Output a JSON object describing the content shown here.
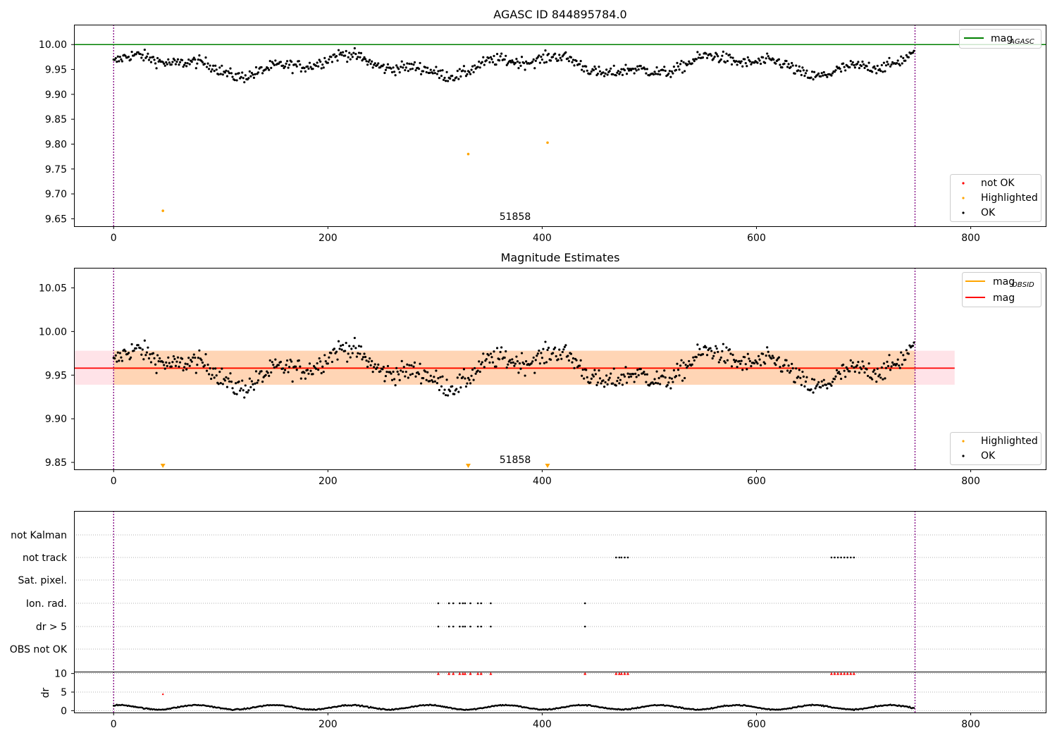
{
  "figure": {
    "title": "AGASC ID 844895784.0",
    "obsid_label": "51858"
  },
  "chart_data": [
    {
      "type": "scatter",
      "title": "AGASC ID 844895784.0",
      "xlim": [
        -37,
        870
      ],
      "ylim": [
        9.635,
        10.04
      ],
      "x_ticks": [
        "0",
        "200",
        "400",
        "600",
        "800"
      ],
      "y_ticks": [
        "9.65",
        "9.70",
        "9.75",
        "9.80",
        "9.85",
        "9.90",
        "9.95",
        "10.00"
      ],
      "annotation": "51858",
      "vertical_lines_x": [
        0,
        748
      ],
      "reference_line": {
        "name": "mag_AGASC",
        "y": 10.0,
        "color": "#008000"
      },
      "legend_lines": [
        {
          "label": "mag",
          "sub": "AGASC",
          "color": "#008000"
        }
      ],
      "legend_points": [
        {
          "label": "not OK",
          "color": "#ff0000"
        },
        {
          "label": "Highlighted",
          "color": "#ffa500"
        },
        {
          "label": "OK",
          "color": "#000000"
        }
      ],
      "series": [
        {
          "name": "Highlighted",
          "color": "#ffa500",
          "points": [
            [
              46,
              9.666
            ],
            [
              331,
              9.78
            ],
            [
              405,
              9.803
            ]
          ]
        },
        {
          "name": "OK",
          "color": "#000000",
          "n_points": 748,
          "x_range": [
            0,
            748
          ],
          "y_mean": 9.958,
          "y_spread": [
            9.905,
            10.008
          ]
        }
      ]
    },
    {
      "type": "scatter",
      "title": "Magnitude Estimates",
      "xlim": [
        -37,
        870
      ],
      "ylim": [
        9.842,
        10.073
      ],
      "x_ticks": [
        "0",
        "200",
        "400",
        "600",
        "800"
      ],
      "y_ticks": [
        "9.85",
        "9.90",
        "9.95",
        "10.00",
        "10.05"
      ],
      "annotation": "51858",
      "vertical_lines_x": [
        0,
        748
      ],
      "mag": {
        "y": 9.958,
        "band": [
          9.939,
          9.978
        ],
        "color": "#ff0000"
      },
      "mag_obsid": {
        "y": 9.958,
        "band": [
          9.939,
          9.978
        ],
        "color": "#ffa500"
      },
      "legend_lines": [
        {
          "label": "mag",
          "sub": "OBSID",
          "color": "#ffa500"
        },
        {
          "label": "mag",
          "sub": "",
          "color": "#ff0000"
        }
      ],
      "legend_points": [
        {
          "label": "Highlighted",
          "color": "#ffa500"
        },
        {
          "label": "OK",
          "color": "#000000"
        }
      ],
      "series": [
        {
          "name": "Highlighted",
          "color": "#ffa500",
          "points": [
            [
              46,
              9.846
            ],
            [
              331,
              9.846
            ],
            [
              405,
              9.846
            ]
          ]
        },
        {
          "name": "OK",
          "color": "#000000",
          "n_points": 748
        }
      ]
    },
    {
      "type": "scatter",
      "title": "",
      "xlim": [
        -37,
        870
      ],
      "categories": [
        "not Kalman",
        "not track",
        "Sat. pixel.",
        "Ion. rad.",
        "dr > 5",
        "OBS not OK"
      ],
      "vertical_lines_x": [
        0,
        748
      ],
      "flags": {
        "not track": [
          469,
          472,
          474,
          477,
          480,
          670,
          673,
          676,
          679,
          682,
          685,
          688,
          691
        ],
        "Ion. rad.": [
          303,
          313,
          317,
          323,
          326,
          328,
          333,
          340,
          343,
          352,
          440
        ],
        "dr > 5": [
          303,
          313,
          317,
          323,
          326,
          328,
          333,
          340,
          343,
          352,
          440
        ]
      }
    },
    {
      "type": "scatter",
      "title": "",
      "xlim": [
        -37,
        870
      ],
      "ylim": [
        -0.5,
        10.5
      ],
      "ylabel": "dr",
      "y_ticks": [
        "0",
        "5",
        "10"
      ],
      "x_ticks": [
        "0",
        "200",
        "400",
        "600",
        "800"
      ],
      "vertical_lines_x": [
        0,
        748
      ],
      "clipped_markers_x": [
        303,
        313,
        317,
        323,
        326,
        328,
        333,
        340,
        343,
        352,
        440,
        469,
        472,
        474,
        477,
        480,
        670,
        673,
        676,
        679,
        682,
        685,
        688,
        691
      ],
      "outliers": [
        [
          46,
          4.5
        ]
      ],
      "series": [
        {
          "name": "dr",
          "color": "#000000",
          "n_points": 748,
          "y_range": [
            0,
            2
          ]
        }
      ]
    }
  ]
}
